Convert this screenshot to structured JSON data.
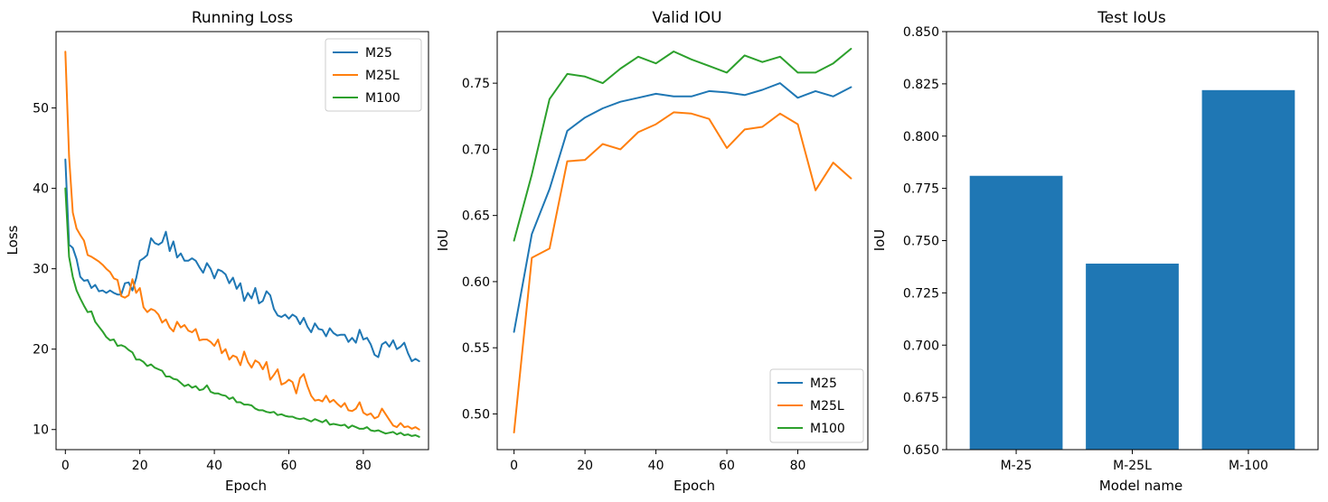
{
  "colors": {
    "blue": "#1f77b4",
    "orange": "#ff7f0e",
    "green": "#2ca02c"
  },
  "chart_data": [
    {
      "type": "line",
      "title": "Running Loss",
      "xlabel": "Epoch",
      "ylabel": "Loss",
      "xlim": [
        -2.5,
        97.5
      ],
      "ylim": [
        7.5,
        59.5
      ],
      "xticks": [
        0,
        20,
        40,
        60,
        80
      ],
      "yticks": [
        10,
        20,
        30,
        40,
        50
      ],
      "legend": "top-right",
      "x": [
        0,
        1,
        2,
        3,
        4,
        5,
        6,
        7,
        8,
        9,
        10,
        11,
        12,
        13,
        14,
        15,
        16,
        17,
        18,
        19,
        20,
        21,
        22,
        23,
        24,
        25,
        26,
        27,
        28,
        29,
        30,
        31,
        32,
        33,
        34,
        35,
        36,
        37,
        38,
        39,
        40,
        41,
        42,
        43,
        44,
        45,
        46,
        47,
        48,
        49,
        50,
        51,
        52,
        53,
        54,
        55,
        56,
        57,
        58,
        59,
        60,
        61,
        62,
        63,
        64,
        65,
        66,
        67,
        68,
        69,
        70,
        71,
        72,
        73,
        74,
        75,
        76,
        77,
        78,
        79,
        80,
        81,
        82,
        83,
        84,
        85,
        86,
        87,
        88,
        89,
        90,
        91,
        92,
        93,
        94,
        95
      ],
      "series": [
        {
          "name": "M25",
          "color": "blue",
          "values": [
            43.6,
            33.0,
            32.6,
            31.2,
            29.0,
            28.5,
            28.6,
            27.6,
            28.0,
            27.2,
            27.3,
            27.0,
            27.3,
            27.0,
            26.8,
            26.8,
            28.2,
            28.3,
            27.3,
            28.8,
            31.0,
            31.3,
            31.7,
            33.8,
            33.2,
            33.0,
            33.3,
            34.6,
            32.2,
            33.4,
            31.4,
            31.9,
            31.0,
            31.0,
            31.3,
            31.0,
            30.2,
            29.5,
            30.7,
            30.0,
            28.8,
            29.9,
            29.7,
            29.3,
            28.2,
            28.9,
            27.5,
            28.2,
            26.0,
            27.0,
            26.3,
            27.6,
            25.7,
            26.0,
            27.2,
            26.7,
            25.0,
            24.2,
            24.0,
            24.3,
            23.8,
            24.3,
            24.0,
            23.1,
            23.9,
            22.8,
            22.1,
            23.2,
            22.5,
            22.4,
            21.6,
            22.6,
            22.0,
            21.7,
            21.8,
            21.8,
            20.9,
            21.4,
            20.8,
            22.4,
            21.2,
            21.4,
            20.6,
            19.3,
            19.0,
            20.6,
            20.9,
            20.3,
            21.1,
            20.0,
            20.3,
            20.8,
            19.5,
            18.5,
            18.8,
            18.5
          ]
        },
        {
          "name": "M25L",
          "color": "orange",
          "values": [
            57.0,
            44.0,
            37.0,
            35.0,
            34.2,
            33.5,
            31.7,
            31.5,
            31.2,
            30.9,
            30.5,
            30.0,
            29.6,
            28.8,
            28.6,
            26.6,
            26.4,
            26.7,
            28.7,
            27.0,
            27.6,
            25.2,
            24.6,
            25.0,
            24.8,
            24.3,
            23.3,
            23.7,
            22.7,
            22.2,
            23.4,
            22.7,
            23.0,
            22.3,
            22.1,
            22.5,
            21.1,
            21.2,
            21.2,
            20.9,
            20.4,
            21.2,
            19.5,
            20.0,
            18.7,
            19.2,
            19.0,
            18.0,
            19.7,
            18.4,
            17.7,
            18.6,
            18.3,
            17.5,
            18.4,
            16.2,
            16.8,
            17.5,
            15.6,
            15.8,
            16.2,
            15.9,
            14.5,
            16.4,
            16.9,
            15.4,
            14.2,
            13.6,
            13.7,
            13.5,
            14.2,
            13.4,
            13.7,
            13.2,
            12.8,
            13.3,
            12.4,
            12.3,
            12.6,
            13.4,
            12.1,
            11.8,
            12.0,
            11.4,
            11.6,
            12.6,
            11.9,
            11.2,
            10.5,
            10.3,
            10.8,
            10.3,
            10.4,
            10.1,
            10.3,
            10.0
          ]
        },
        {
          "name": "M100",
          "color": "green",
          "values": [
            40.0,
            31.5,
            29.0,
            27.3,
            26.3,
            25.4,
            24.6,
            24.7,
            23.4,
            22.8,
            22.2,
            21.5,
            21.1,
            21.2,
            20.4,
            20.5,
            20.3,
            19.9,
            19.6,
            18.7,
            18.7,
            18.4,
            17.9,
            18.1,
            17.7,
            17.5,
            17.3,
            16.6,
            16.6,
            16.3,
            16.2,
            15.8,
            15.4,
            15.6,
            15.2,
            15.4,
            14.9,
            15.0,
            15.5,
            14.7,
            14.5,
            14.5,
            14.3,
            14.2,
            13.8,
            14.0,
            13.4,
            13.4,
            13.1,
            13.1,
            13.0,
            12.6,
            12.4,
            12.4,
            12.2,
            12.1,
            12.2,
            11.8,
            11.9,
            11.7,
            11.6,
            11.6,
            11.4,
            11.3,
            11.4,
            11.2,
            11.0,
            11.3,
            11.1,
            10.9,
            11.2,
            10.6,
            10.7,
            10.6,
            10.5,
            10.6,
            10.2,
            10.5,
            10.3,
            10.1,
            10.1,
            10.3,
            9.9,
            9.8,
            9.9,
            9.7,
            9.5,
            9.6,
            9.7,
            9.4,
            9.6,
            9.3,
            9.4,
            9.2,
            9.3,
            9.1
          ]
        }
      ]
    },
    {
      "type": "line",
      "title": "Valid IOU",
      "xlabel": "Epoch",
      "ylabel": "IoU",
      "xlim": [
        -4.75,
        99.75
      ],
      "ylim": [
        0.473,
        0.789
      ],
      "xticks": [
        0,
        20,
        40,
        60,
        80
      ],
      "yticks": [
        0.5,
        0.55,
        0.6,
        0.65,
        0.7,
        0.75
      ],
      "ytick_labels": [
        "0.50",
        "0.55",
        "0.60",
        "0.65",
        "0.70",
        "0.75"
      ],
      "legend": "bottom-right",
      "x": [
        0,
        5,
        10,
        15,
        20,
        25,
        30,
        35,
        40,
        45,
        50,
        55,
        60,
        65,
        70,
        75,
        80,
        85,
        90,
        95
      ],
      "series": [
        {
          "name": "M25",
          "color": "blue",
          "values": [
            0.562,
            0.636,
            0.67,
            0.714,
            0.724,
            0.731,
            0.736,
            0.739,
            0.742,
            0.74,
            0.74,
            0.744,
            0.743,
            0.741,
            0.745,
            0.75,
            0.739,
            0.744,
            0.74,
            0.747
          ]
        },
        {
          "name": "M25L",
          "color": "orange",
          "values": [
            0.486,
            0.618,
            0.625,
            0.691,
            0.692,
            0.704,
            0.7,
            0.713,
            0.719,
            0.728,
            0.727,
            0.723,
            0.701,
            0.715,
            0.717,
            0.727,
            0.719,
            0.669,
            0.69,
            0.678
          ]
        },
        {
          "name": "M100",
          "color": "green",
          "values": [
            0.631,
            0.681,
            0.738,
            0.757,
            0.755,
            0.75,
            0.761,
            0.77,
            0.765,
            0.774,
            0.768,
            0.763,
            0.758,
            0.771,
            0.766,
            0.77,
            0.758,
            0.758,
            0.765,
            0.776
          ]
        }
      ]
    },
    {
      "type": "bar",
      "title": "Test IoUs",
      "xlabel": "Model name",
      "ylabel": "IoU",
      "ylim": [
        0.65,
        0.85
      ],
      "yticks": [
        0.65,
        0.675,
        0.7,
        0.725,
        0.75,
        0.775,
        0.8,
        0.825,
        0.85
      ],
      "ytick_labels": [
        "0.650",
        "0.675",
        "0.700",
        "0.725",
        "0.750",
        "0.775",
        "0.800",
        "0.825",
        "0.850"
      ],
      "categories": [
        "M-25",
        "M-25L",
        "M-100"
      ],
      "values": [
        0.781,
        0.739,
        0.822
      ],
      "color": "blue"
    }
  ]
}
